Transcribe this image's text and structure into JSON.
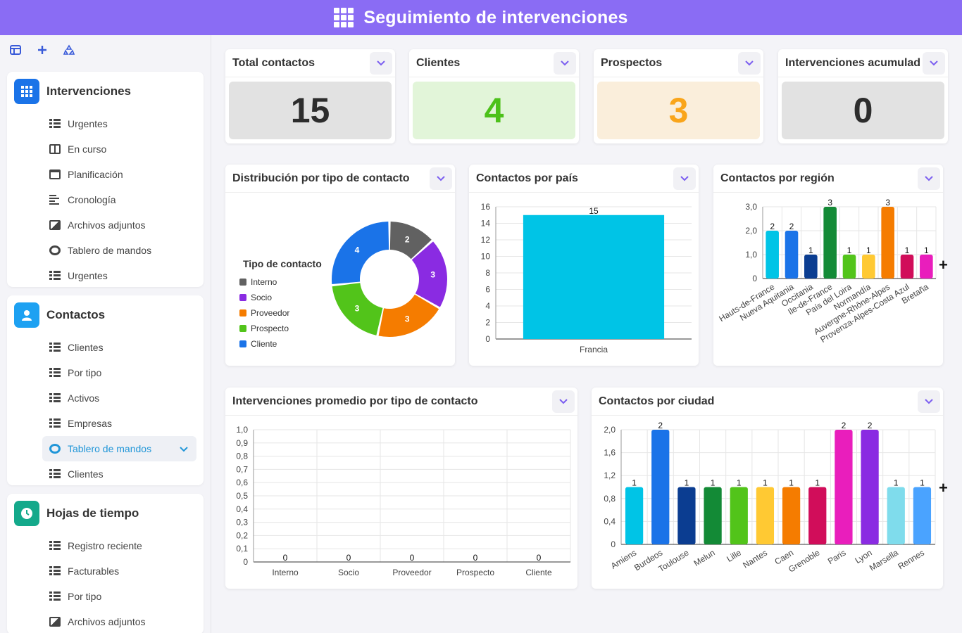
{
  "header": {
    "title": "Seguimiento de intervenciones",
    "icon": "grid-icon"
  },
  "sidebar": {
    "tools": [
      {
        "name": "layout-icon",
        "glyph": "▣"
      },
      {
        "name": "add-icon",
        "glyph": "+"
      },
      {
        "name": "recycle-icon",
        "glyph": "♻"
      }
    ],
    "sections": [
      {
        "title": "Intervenciones",
        "icon": "grid-icon",
        "color": "#1a73e8",
        "items": [
          {
            "label": "Urgentes",
            "icon": "table"
          },
          {
            "label": "En curso",
            "icon": "board"
          },
          {
            "label": "Planificación",
            "icon": "cal"
          },
          {
            "label": "Cronología",
            "icon": "lines"
          },
          {
            "label": "Archivos adjuntos",
            "icon": "img"
          },
          {
            "label": "Tablero de mandos",
            "icon": "gauge"
          },
          {
            "label": "Urgentes",
            "icon": "table"
          }
        ]
      },
      {
        "title": "Contactos",
        "icon": "user-icon",
        "color": "#1da1f2",
        "items": [
          {
            "label": "Clientes",
            "icon": "table"
          },
          {
            "label": "Por tipo",
            "icon": "table"
          },
          {
            "label": "Activos",
            "icon": "table"
          },
          {
            "label": "Empresas",
            "icon": "table"
          },
          {
            "label": "Tablero de mandos",
            "icon": "gauge",
            "active": true
          },
          {
            "label": "Clientes",
            "icon": "table"
          }
        ]
      },
      {
        "title": "Hojas de tiempo",
        "icon": "clock-icon",
        "color": "#14a98b",
        "items": [
          {
            "label": "Registro reciente",
            "icon": "table"
          },
          {
            "label": "Facturables",
            "icon": "table"
          },
          {
            "label": "Por tipo",
            "icon": "table"
          },
          {
            "label": "Archivos adjuntos",
            "icon": "img"
          }
        ]
      }
    ]
  },
  "kpis": [
    {
      "title": "Total contactos",
      "value": "15",
      "bg": "#e2e2e2",
      "fg": "#2d2d2d"
    },
    {
      "title": "Clientes",
      "value": "4",
      "bg": "#e2f5d9",
      "fg": "#4cc11a"
    },
    {
      "title": "Prospectos",
      "value": "3",
      "bg": "#faeedb",
      "fg": "#f9a51b"
    },
    {
      "title": "Intervenciones acumulad",
      "value": "0",
      "bg": "#e2e2e2",
      "fg": "#2d2d2d"
    }
  ],
  "charts": {
    "donut_title": "Distribución por tipo de contacto",
    "pais_title": "Contactos por país",
    "region_title": "Contactos por región",
    "promedio_title": "Intervenciones promedio por tipo de contacto",
    "ciudad_title": "Contactos por ciudad"
  },
  "chart_data": [
    {
      "type": "pie",
      "title": "Distribución por tipo de contacto",
      "legend_title": "Tipo de contacto",
      "legend_position": "left",
      "categories": [
        "Interno",
        "Socio",
        "Proveedor",
        "Prospecto",
        "Cliente"
      ],
      "values": [
        2,
        3,
        3,
        3,
        4
      ],
      "colors": [
        "#616161",
        "#8a2be2",
        "#f57c00",
        "#52c41a",
        "#1a73e8"
      ]
    },
    {
      "type": "bar",
      "title": "Contactos por país",
      "categories": [
        "Francia"
      ],
      "values": [
        15
      ],
      "ylim": [
        0,
        16
      ],
      "yticks": [
        "0",
        "2",
        "4",
        "6",
        "8",
        "10",
        "12",
        "14",
        "16"
      ],
      "colors": [
        "#00c4e6"
      ]
    },
    {
      "type": "bar",
      "title": "Contactos por región",
      "categories": [
        "Hauts-de-France",
        "Nueva Aquitania",
        "Occitania",
        "Ile-de-France",
        "País del Loira",
        "Normandía",
        "Auvergne-Rhône-Alpes",
        "Provenza-Alpes-Costa Azul",
        "Bretaña"
      ],
      "values": [
        2,
        2,
        1,
        3,
        1,
        1,
        3,
        1,
        1
      ],
      "ylim": [
        0,
        3
      ],
      "yticks": [
        "0",
        "1,0",
        "2,0",
        "3,0"
      ],
      "colors": [
        "#00c4e6",
        "#1a73e8",
        "#0b3d91",
        "#138a36",
        "#52c41a",
        "#ffc933",
        "#f57c00",
        "#d10d5a",
        "#e91ebc"
      ]
    },
    {
      "type": "bar",
      "title": "Intervenciones promedio por tipo de contacto",
      "categories": [
        "Interno",
        "Socio",
        "Proveedor",
        "Prospecto",
        "Cliente"
      ],
      "values": [
        0,
        0,
        0,
        0,
        0
      ],
      "ylim": [
        0,
        1
      ],
      "yticks": [
        "0",
        "0,1",
        "0,2",
        "0,3",
        "0,4",
        "0,5",
        "0,6",
        "0,7",
        "0,8",
        "0,9",
        "1,0"
      ]
    },
    {
      "type": "bar",
      "title": "Contactos por ciudad",
      "categories": [
        "Amiens",
        "Burdeos",
        "Toulouse",
        "Melun",
        "Lille",
        "Nantes",
        "Caen",
        "Grenoble",
        "Paris",
        "Lyon",
        "Marsella",
        "Rennes"
      ],
      "values": [
        1,
        2,
        1,
        1,
        1,
        1,
        1,
        1,
        2,
        2,
        1,
        1
      ],
      "ylim": [
        0,
        2
      ],
      "yticks": [
        "0",
        "0,4",
        "0,8",
        "1,2",
        "1,6",
        "2,0"
      ],
      "colors": [
        "#00c4e6",
        "#1a73e8",
        "#0b3d91",
        "#138a36",
        "#52c41a",
        "#ffc933",
        "#f57c00",
        "#d10d5a",
        "#e91ebc",
        "#8a2be2",
        "#7fdcec",
        "#4aa3ff"
      ]
    }
  ]
}
